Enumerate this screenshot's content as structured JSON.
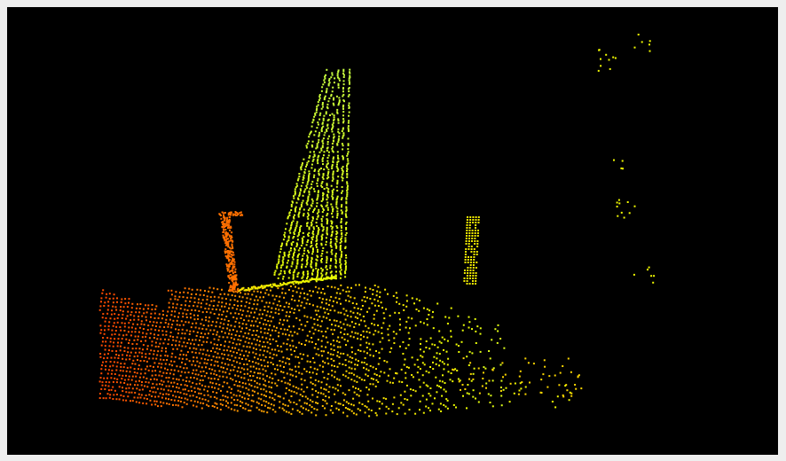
{
  "viewer": {
    "background_color": "#000000",
    "frame_color": "#eeeeee",
    "colormap": [
      "#ff4a00",
      "#ff8a00",
      "#ffcc00",
      "#eeff00",
      "#c8ff40"
    ]
  }
}
